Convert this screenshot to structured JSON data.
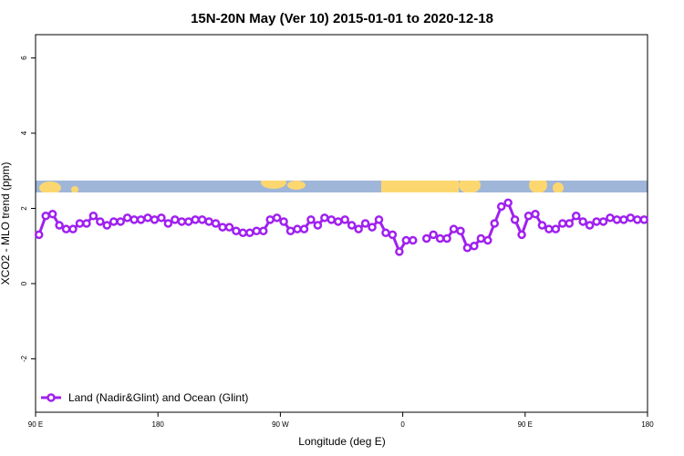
{
  "chart_data": {
    "type": "line",
    "title": "15N-20N May (Ver 10)   2015-01-01 to 2020-12-18",
    "xlabel": "Longitude (deg E)",
    "ylabel": "XCO2 - MLO trend (ppm)",
    "xlim": [
      90,
      540
    ],
    "ylim": [
      -3.42,
      6.62
    ],
    "xticks": [
      {
        "value": 90,
        "label": "90 E"
      },
      {
        "value": 180,
        "label": "180"
      },
      {
        "value": 270,
        "label": "90 W"
      },
      {
        "value": 360,
        "label": "0"
      },
      {
        "value": 450,
        "label": "90 E"
      },
      {
        "value": 540,
        "label": "180"
      }
    ],
    "yticks": [
      6,
      4,
      2,
      0,
      -2
    ],
    "legend": "bottom-left",
    "x": [
      92.5,
      97.5,
      102.5,
      107.5,
      112.5,
      117.5,
      122.5,
      127.5,
      132.5,
      137.5,
      142.5,
      147.5,
      152.5,
      157.5,
      162.5,
      167.5,
      172.5,
      177.5,
      182.5,
      187.5,
      192.5,
      197.5,
      202.5,
      207.5,
      212.5,
      217.5,
      222.5,
      227.5,
      232.5,
      237.5,
      242.5,
      247.5,
      252.5,
      257.5,
      262.5,
      267.5,
      272.5,
      277.5,
      282.5,
      287.5,
      292.5,
      297.5,
      302.5,
      307.5,
      312.5,
      317.5,
      322.5,
      327.5,
      332.5,
      337.5,
      342.5,
      347.5,
      352.5,
      357.5,
      362.5,
      367.5,
      372.5,
      377.5,
      382.5,
      387.5,
      392.5,
      397.5,
      402.5,
      407.5,
      412.5,
      417.5,
      422.5,
      427.5,
      432.5,
      437.5,
      442.5,
      447.5,
      452.5,
      457.5,
      462.5,
      467.5,
      472.5,
      477.5,
      482.5,
      487.5,
      492.5,
      497.5,
      502.5,
      507.5,
      512.5,
      517.5,
      522.5,
      527.5,
      532.5,
      537.5
    ],
    "series": [
      {
        "name": "Land (Nadir&Glint) and Ocean (Glint)",
        "color": "#a020f0",
        "values": [
          1.3,
          1.8,
          1.85,
          1.55,
          1.45,
          1.45,
          1.6,
          1.6,
          1.8,
          1.65,
          1.55,
          1.65,
          1.65,
          1.75,
          1.7,
          1.7,
          1.75,
          1.7,
          1.75,
          1.6,
          1.7,
          1.65,
          1.65,
          1.7,
          1.7,
          1.65,
          1.6,
          1.5,
          1.5,
          1.4,
          1.35,
          1.35,
          1.4,
          1.4,
          1.7,
          1.75,
          1.65,
          1.4,
          1.45,
          1.45,
          1.7,
          1.55,
          1.75,
          1.7,
          1.65,
          1.7,
          1.55,
          1.45,
          1.6,
          1.5,
          1.7,
          1.35,
          1.3,
          0.85,
          1.15,
          1.15,
          null,
          1.2,
          1.3,
          1.2,
          1.2,
          1.45,
          1.4,
          0.95,
          1.0,
          1.2,
          1.15,
          1.6,
          2.05,
          2.15,
          1.7,
          1.3,
          1.8,
          1.85,
          1.55,
          1.45,
          1.45,
          1.6,
          1.6,
          1.8,
          1.65,
          1.55,
          1.65,
          1.65,
          1.75,
          1.7,
          1.7,
          1.75,
          1.7,
          1.7
        ]
      }
    ]
  }
}
